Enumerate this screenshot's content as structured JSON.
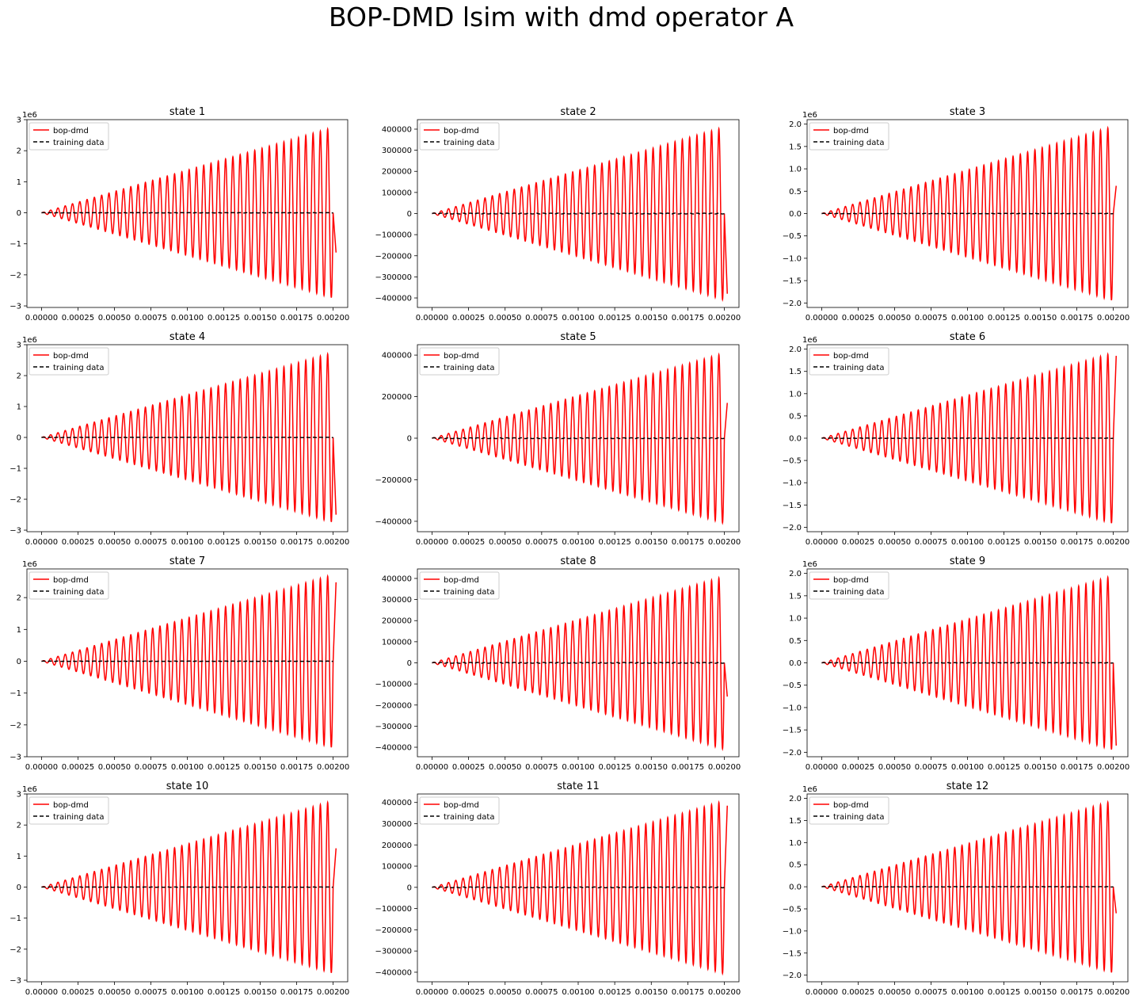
{
  "figure": {
    "suptitle": "BOP-DMD lsim with dmd operator A",
    "colors": {
      "bopdmd": "#ff0000",
      "training": "#000000",
      "frame": "#000000",
      "legend_border": "#cccccc"
    }
  },
  "chart_data": [
    {
      "type": "line",
      "title": "state 1",
      "scale_label": "1e6",
      "xlim": [
        -0.0001,
        0.0021
      ],
      "ylim": [
        -3.05,
        3.0
      ],
      "xticks": [
        "0.00000",
        "0.00025",
        "0.00050",
        "0.00075",
        "0.00100",
        "0.00125",
        "0.00150",
        "0.00175",
        "0.00200"
      ],
      "yticks": [
        -3,
        -2,
        -1,
        0,
        1,
        2,
        3
      ],
      "ytick_labels": [
        "−3",
        "−2",
        "−1",
        "0",
        "1",
        "2",
        "3"
      ],
      "legend": "upper left",
      "series": [
        {
          "name": "bop-dmd",
          "style": "solid",
          "color": "#ff0000",
          "amplitude_max": 2.75,
          "end_value": -1.28,
          "oscillations": 40
        },
        {
          "name": "training data",
          "style": "dashed",
          "color": "#000000",
          "amplitude_max": 0.005
        }
      ]
    },
    {
      "type": "line",
      "title": "state 2",
      "scale_label": "",
      "xlim": [
        -0.0001,
        0.0021
      ],
      "ylim": [
        -445000,
        445000
      ],
      "xticks": [
        "0.00000",
        "0.00025",
        "0.00050",
        "0.00075",
        "0.00100",
        "0.00125",
        "0.00150",
        "0.00175",
        "0.00200"
      ],
      "yticks": [
        -400000,
        -300000,
        -200000,
        -100000,
        0,
        100000,
        200000,
        300000,
        400000
      ],
      "ytick_labels": [
        "−400000",
        "−300000",
        "−200000",
        "−100000",
        "0",
        "100000",
        "200000",
        "300000",
        "400000"
      ],
      "legend": "upper left",
      "series": [
        {
          "name": "bop-dmd",
          "style": "solid",
          "color": "#ff0000",
          "amplitude_max": 410000,
          "end_value": -380000,
          "oscillations": 40
        },
        {
          "name": "training data",
          "style": "dashed",
          "color": "#000000",
          "amplitude_max": 2000
        }
      ]
    },
    {
      "type": "line",
      "title": "state 3",
      "scale_label": "1e6",
      "xlim": [
        -0.0001,
        0.0021
      ],
      "ylim": [
        -2.1,
        2.1
      ],
      "xticks": [
        "0.00000",
        "0.00025",
        "0.00050",
        "0.00075",
        "0.00100",
        "0.00125",
        "0.00150",
        "0.00175",
        "0.00200"
      ],
      "yticks": [
        -2.0,
        -1.5,
        -1.0,
        -0.5,
        0.0,
        0.5,
        1.0,
        1.5,
        2.0
      ],
      "ytick_labels": [
        "−2.0",
        "−1.5",
        "−1.0",
        "−0.5",
        "0.0",
        "0.5",
        "1.0",
        "1.5",
        "2.0"
      ],
      "legend": "upper left",
      "series": [
        {
          "name": "bop-dmd",
          "style": "solid",
          "color": "#ff0000",
          "amplitude_max": 1.95,
          "end_value": 0.62,
          "oscillations": 40
        },
        {
          "name": "training data",
          "style": "dashed",
          "color": "#000000",
          "amplitude_max": 0.005
        }
      ]
    },
    {
      "type": "line",
      "title": "state 4",
      "scale_label": "1e6",
      "xlim": [
        -0.0001,
        0.0021
      ],
      "ylim": [
        -3.05,
        3.0
      ],
      "xticks": [
        "0.00000",
        "0.00025",
        "0.00050",
        "0.00075",
        "0.00100",
        "0.00125",
        "0.00150",
        "0.00175",
        "0.00200"
      ],
      "yticks": [
        -3,
        -2,
        -1,
        0,
        1,
        2,
        3
      ],
      "ytick_labels": [
        "−3",
        "−2",
        "−1",
        "0",
        "1",
        "2",
        "3"
      ],
      "legend": "upper left",
      "series": [
        {
          "name": "bop-dmd",
          "style": "solid",
          "color": "#ff0000",
          "amplitude_max": 2.75,
          "end_value": -2.5,
          "oscillations": 40
        },
        {
          "name": "training data",
          "style": "dashed",
          "color": "#000000",
          "amplitude_max": 0.005
        }
      ]
    },
    {
      "type": "line",
      "title": "state 5",
      "scale_label": "",
      "xlim": [
        -0.0001,
        0.0021
      ],
      "ylim": [
        -450000,
        450000
      ],
      "xticks": [
        "0.00000",
        "0.00025",
        "0.00050",
        "0.00075",
        "0.00100",
        "0.00125",
        "0.00150",
        "0.00175",
        "0.00200"
      ],
      "yticks": [
        -400000,
        -200000,
        0,
        200000,
        400000
      ],
      "ytick_labels": [
        "−400000",
        "−200000",
        "0",
        "200000",
        "400000"
      ],
      "legend": "upper left",
      "series": [
        {
          "name": "bop-dmd",
          "style": "solid",
          "color": "#ff0000",
          "amplitude_max": 410000,
          "end_value": 170000,
          "oscillations": 40
        },
        {
          "name": "training data",
          "style": "dashed",
          "color": "#000000",
          "amplitude_max": 2000
        }
      ]
    },
    {
      "type": "line",
      "title": "state 6",
      "scale_label": "1e6",
      "xlim": [
        -0.0001,
        0.0021
      ],
      "ylim": [
        -2.1,
        2.1
      ],
      "xticks": [
        "0.00000",
        "0.00025",
        "0.00050",
        "0.00075",
        "0.00100",
        "0.00125",
        "0.00150",
        "0.00175",
        "0.00200"
      ],
      "yticks": [
        -2.0,
        -1.5,
        -1.0,
        -0.5,
        0.0,
        0.5,
        1.0,
        1.5,
        2.0
      ],
      "ytick_labels": [
        "−2.0",
        "−1.5",
        "−1.0",
        "−0.5",
        "0.0",
        "0.5",
        "1.0",
        "1.5",
        "2.0"
      ],
      "legend": "upper left",
      "series": [
        {
          "name": "bop-dmd",
          "style": "solid",
          "color": "#ff0000",
          "amplitude_max": 1.92,
          "end_value": 1.85,
          "oscillations": 40
        },
        {
          "name": "training data",
          "style": "dashed",
          "color": "#000000",
          "amplitude_max": 0.005
        }
      ]
    },
    {
      "type": "line",
      "title": "state 7",
      "scale_label": "1e6",
      "xlim": [
        -0.0001,
        0.0021
      ],
      "ylim": [
        -3.0,
        2.9
      ],
      "xticks": [
        "0.00000",
        "0.00025",
        "0.00050",
        "0.00075",
        "0.00100",
        "0.00125",
        "0.00150",
        "0.00175",
        "0.00200"
      ],
      "yticks": [
        -3,
        -2,
        -1,
        0,
        1,
        2
      ],
      "ytick_labels": [
        "−3",
        "−2",
        "−1",
        "0",
        "1",
        "2"
      ],
      "legend": "upper left",
      "series": [
        {
          "name": "bop-dmd",
          "style": "solid",
          "color": "#ff0000",
          "amplitude_max": 2.72,
          "end_value": 2.48,
          "oscillations": 40
        },
        {
          "name": "training data",
          "style": "dashed",
          "color": "#000000",
          "amplitude_max": 0.005
        }
      ]
    },
    {
      "type": "line",
      "title": "state 8",
      "scale_label": "",
      "xlim": [
        -0.0001,
        0.0021
      ],
      "ylim": [
        -445000,
        445000
      ],
      "xticks": [
        "0.00000",
        "0.00025",
        "0.00050",
        "0.00075",
        "0.00100",
        "0.00125",
        "0.00150",
        "0.00175",
        "0.00200"
      ],
      "yticks": [
        -400000,
        -300000,
        -200000,
        -100000,
        0,
        100000,
        200000,
        300000,
        400000
      ],
      "ytick_labels": [
        "−400000",
        "−300000",
        "−200000",
        "−100000",
        "0",
        "100000",
        "200000",
        "300000",
        "400000"
      ],
      "legend": "upper left",
      "series": [
        {
          "name": "bop-dmd",
          "style": "solid",
          "color": "#ff0000",
          "amplitude_max": 410000,
          "end_value": -160000,
          "oscillations": 40
        },
        {
          "name": "training data",
          "style": "dashed",
          "color": "#000000",
          "amplitude_max": 2000
        }
      ]
    },
    {
      "type": "line",
      "title": "state 9",
      "scale_label": "1e6",
      "xlim": [
        -0.0001,
        0.0021
      ],
      "ylim": [
        -2.1,
        2.1
      ],
      "xticks": [
        "0.00000",
        "0.00025",
        "0.00050",
        "0.00075",
        "0.00100",
        "0.00125",
        "0.00150",
        "0.00175",
        "0.00200"
      ],
      "yticks": [
        -2.0,
        -1.5,
        -1.0,
        -0.5,
        0.0,
        0.5,
        1.0,
        1.5,
        2.0
      ],
      "ytick_labels": [
        "−2.0",
        "−1.5",
        "−1.0",
        "−0.5",
        "0.0",
        "0.5",
        "1.0",
        "1.5",
        "2.0"
      ],
      "legend": "upper left",
      "series": [
        {
          "name": "bop-dmd",
          "style": "solid",
          "color": "#ff0000",
          "amplitude_max": 1.95,
          "end_value": -1.85,
          "oscillations": 40
        },
        {
          "name": "training data",
          "style": "dashed",
          "color": "#000000",
          "amplitude_max": 0.005
        }
      ]
    },
    {
      "type": "line",
      "title": "state 10",
      "scale_label": "1e6",
      "xlim": [
        -0.0001,
        0.0021
      ],
      "ylim": [
        -3.05,
        3.0
      ],
      "xticks": [
        "0.00000",
        "0.00025",
        "0.00050",
        "0.00075",
        "0.00100",
        "0.00125",
        "0.00150",
        "0.00175",
        "0.00200"
      ],
      "yticks": [
        -3,
        -2,
        -1,
        0,
        1,
        2,
        3
      ],
      "ytick_labels": [
        "−3",
        "−2",
        "−1",
        "0",
        "1",
        "2",
        "3"
      ],
      "legend": "upper left",
      "series": [
        {
          "name": "bop-dmd",
          "style": "solid",
          "color": "#ff0000",
          "amplitude_max": 2.78,
          "end_value": 1.25,
          "oscillations": 40
        },
        {
          "name": "training data",
          "style": "dashed",
          "color": "#000000",
          "amplitude_max": 0.005
        }
      ]
    },
    {
      "type": "line",
      "title": "state 11",
      "scale_label": "",
      "xlim": [
        -0.0001,
        0.0021
      ],
      "ylim": [
        -445000,
        440000
      ],
      "xticks": [
        "0.00000",
        "0.00025",
        "0.00050",
        "0.00075",
        "0.00100",
        "0.00125",
        "0.00150",
        "0.00175",
        "0.00200"
      ],
      "yticks": [
        -400000,
        -300000,
        -200000,
        -100000,
        0,
        100000,
        200000,
        300000,
        400000
      ],
      "ytick_labels": [
        "−400000",
        "−300000",
        "−200000",
        "−100000",
        "0",
        "100000",
        "200000",
        "300000",
        "400000"
      ],
      "legend": "upper left",
      "series": [
        {
          "name": "bop-dmd",
          "style": "solid",
          "color": "#ff0000",
          "amplitude_max": 408000,
          "end_value": 385000,
          "oscillations": 40
        },
        {
          "name": "training data",
          "style": "dashed",
          "color": "#000000",
          "amplitude_max": 2000
        }
      ]
    },
    {
      "type": "line",
      "title": "state 12",
      "scale_label": "1e6",
      "xlim": [
        -0.0001,
        0.0021
      ],
      "ylim": [
        -2.15,
        2.1
      ],
      "xticks": [
        "0.00000",
        "0.00025",
        "0.00050",
        "0.00075",
        "0.00100",
        "0.00125",
        "0.00150",
        "0.00175",
        "0.00200"
      ],
      "yticks": [
        -2.0,
        -1.5,
        -1.0,
        -0.5,
        0.0,
        0.5,
        1.0,
        1.5,
        2.0
      ],
      "ytick_labels": [
        "−2.0",
        "−1.5",
        "−1.0",
        "−0.5",
        "0.0",
        "0.5",
        "1.0",
        "1.5",
        "2.0"
      ],
      "legend": "upper left",
      "series": [
        {
          "name": "bop-dmd",
          "style": "solid",
          "color": "#ff0000",
          "amplitude_max": 1.95,
          "end_value": -0.6,
          "oscillations": 40
        },
        {
          "name": "training data",
          "style": "dashed",
          "color": "#000000",
          "amplitude_max": 0.005
        }
      ]
    }
  ]
}
